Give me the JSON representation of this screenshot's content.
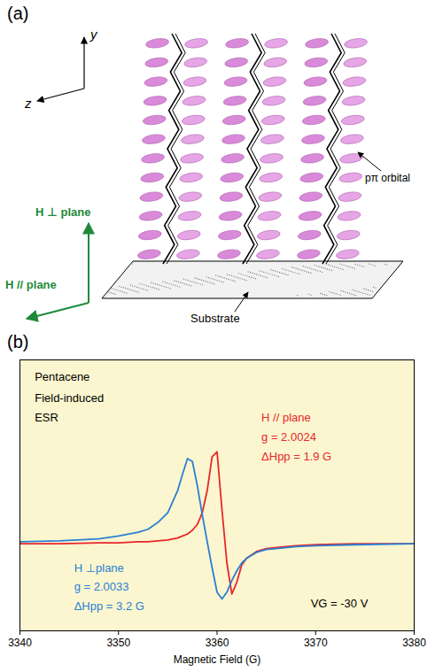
{
  "diagram": {
    "panel_label": "(a)",
    "axes": [
      "y",
      "z"
    ],
    "field_labels": [
      "H ⊥ plane",
      "H // plane"
    ],
    "labels": [
      "pπ orbital",
      "Substrate"
    ]
  },
  "chart_data": {
    "type": "line",
    "panel_label": "(b)",
    "xlabel": "Magnetic Field (G)",
    "x": [
      3340,
      3344,
      3348,
      3350,
      3352,
      3353,
      3354,
      3355,
      3356,
      3356.5,
      3357,
      3357.5,
      3358,
      3358.5,
      3359,
      3359.5,
      3360,
      3360.5,
      3361,
      3361.5,
      3362,
      3362.5,
      3363,
      3364,
      3365,
      3366,
      3368,
      3370,
      3374,
      3380
    ],
    "xlim": [
      3340,
      3380
    ],
    "xticks": [
      3340,
      3350,
      3360,
      3370,
      3380
    ],
    "ylim": [
      -0.9,
      1.9
    ],
    "tick_labels": "x",
    "grid": false,
    "series": [
      {
        "name": "H // plane",
        "color": "#e8262b",
        "labels": [
          "g = 2.0024",
          "ΔHpp = 1.9 G"
        ],
        "values": [
          0,
          0,
          0.01,
          0.01,
          0.02,
          0.02,
          0.03,
          0.04,
          0.06,
          0.08,
          0.1,
          0.14,
          0.2,
          0.32,
          0.55,
          0.9,
          0.95,
          0.35,
          -0.2,
          -0.52,
          -0.4,
          -0.22,
          -0.15,
          -0.08,
          -0.05,
          -0.04,
          -0.02,
          -0.01,
          0,
          0
        ]
      },
      {
        "name": "H ⊥plane",
        "color": "#2a7fd4",
        "labels": [
          "g = 2.0033",
          "ΔHpp = 3.2 G"
        ],
        "values": [
          0.02,
          0.03,
          0.05,
          0.08,
          0.12,
          0.15,
          0.22,
          0.32,
          0.55,
          0.72,
          0.88,
          0.85,
          0.6,
          0.3,
          0.02,
          -0.25,
          -0.5,
          -0.57,
          -0.5,
          -0.38,
          -0.28,
          -0.2,
          -0.15,
          -0.09,
          -0.06,
          -0.05,
          -0.03,
          -0.02,
          -0.01,
          0
        ]
      }
    ],
    "annotations": [
      "Pentacene",
      "Field-induced",
      "ESR",
      "VG = -30 V"
    ]
  }
}
